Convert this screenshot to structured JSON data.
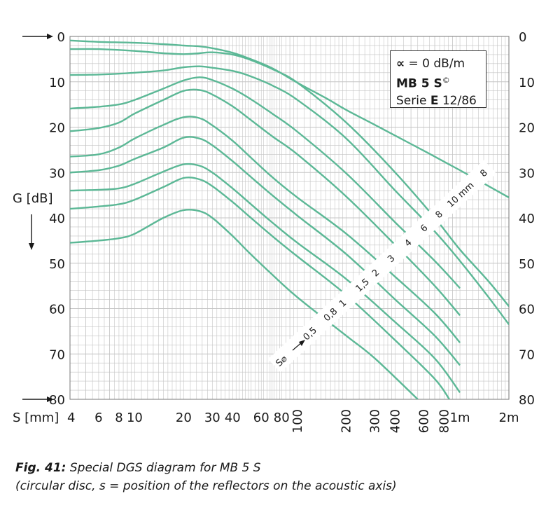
{
  "chart_data": {
    "type": "line",
    "title": "",
    "xlabel": "S [mm]",
    "ylabel": "G [dB]",
    "x_scale": "log",
    "xlim": [
      4,
      2000
    ],
    "ylim": [
      80,
      0
    ],
    "grid": true,
    "x_tick_labels": [
      {
        "value": 6,
        "label": "6"
      },
      {
        "value": 8,
        "label": "8"
      },
      {
        "value": 10,
        "label": "10"
      },
      {
        "value": 20,
        "label": "20"
      },
      {
        "value": 30,
        "label": "30"
      },
      {
        "value": 40,
        "label": "40"
      },
      {
        "value": 60,
        "label": "60"
      },
      {
        "value": 80,
        "label": "80"
      },
      {
        "value": 100,
        "label": "100"
      },
      {
        "value": 200,
        "label": "200"
      },
      {
        "value": 300,
        "label": "300"
      },
      {
        "value": 400,
        "label": "400"
      },
      {
        "value": 600,
        "label": "600"
      },
      {
        "value": 800,
        "label": "800"
      },
      {
        "value": 1000,
        "label": "1m"
      },
      {
        "value": 2000,
        "label": "2m"
      }
    ],
    "x_axis_start_label": "4",
    "y_ticks": [
      0,
      10,
      20,
      30,
      40,
      50,
      60,
      70,
      80
    ],
    "reflector_size_label": "S⌀",
    "line_color": "#5cb896",
    "series": [
      {
        "size": "∞",
        "x": [
          4,
          6,
          10,
          15,
          20,
          25,
          30,
          40,
          50,
          70,
          100,
          150,
          200,
          300,
          500,
          700,
          1000,
          1500,
          2000
        ],
        "y": [
          0.9,
          1.2,
          1.4,
          1.7,
          2.0,
          2.2,
          2.6,
          3.6,
          4.8,
          7.0,
          10.2,
          13.6,
          16.2,
          19.5,
          23.7,
          26.5,
          29.5,
          33.0,
          35.5
        ]
      },
      {
        "size": "10 mm",
        "x": [
          4,
          6,
          10,
          15,
          20,
          25,
          30,
          40,
          50,
          70,
          100,
          200,
          400,
          700,
          1000,
          1500,
          2000
        ],
        "y": [
          2.8,
          2.8,
          3.2,
          3.7,
          3.9,
          3.7,
          3.5,
          4.0,
          5.0,
          7.2,
          10.2,
          19.0,
          30.0,
          40.0,
          47.0,
          54.0,
          59.5
        ]
      },
      {
        "size": "8",
        "x": [
          4,
          6,
          10,
          15,
          20,
          25,
          30,
          40,
          50,
          70,
          100,
          200,
          400,
          700,
          1000,
          1500,
          2000
        ],
        "y": [
          8.5,
          8.4,
          8.0,
          7.5,
          6.8,
          6.6,
          6.9,
          7.6,
          8.6,
          10.8,
          14.0,
          22.5,
          34.0,
          43.0,
          49.5,
          57.5,
          63.5
        ]
      },
      {
        "size": "6",
        "x": [
          4,
          6,
          8,
          10,
          15,
          20,
          25,
          30,
          40,
          50,
          70,
          100,
          200,
          400,
          700,
          1000
        ],
        "y": [
          15.9,
          15.5,
          15.0,
          14.0,
          11.5,
          9.7,
          9.0,
          9.6,
          11.5,
          13.5,
          17.0,
          21.0,
          30.2,
          41.0,
          49.5,
          55.5
        ]
      },
      {
        "size": "4",
        "x": [
          4,
          6,
          8,
          10,
          15,
          20,
          25,
          30,
          40,
          50,
          70,
          100,
          200,
          400,
          700,
          1000
        ],
        "y": [
          20.9,
          20.2,
          19.0,
          17.0,
          14.0,
          12.0,
          11.8,
          12.8,
          15.4,
          18.0,
          22.0,
          26.0,
          35.3,
          46.0,
          55.0,
          61.5
        ]
      },
      {
        "size": "3",
        "x": [
          4,
          6,
          8,
          10,
          15,
          20,
          25,
          30,
          40,
          50,
          70,
          100,
          200,
          400,
          700,
          1000
        ],
        "y": [
          26.5,
          26.0,
          24.5,
          22.5,
          19.5,
          17.8,
          18.0,
          19.6,
          23.0,
          26.2,
          31.0,
          35.5,
          43.5,
          53.0,
          61.0,
          67.5
        ]
      },
      {
        "size": "2",
        "x": [
          4,
          6,
          8,
          10,
          15,
          20,
          25,
          30,
          40,
          50,
          70,
          100,
          200,
          400,
          700,
          1000
        ],
        "y": [
          30.0,
          29.5,
          28.5,
          27.0,
          24.5,
          22.3,
          22.5,
          24.0,
          27.5,
          30.5,
          35.0,
          39.5,
          48.0,
          58.0,
          66.0,
          72.5
        ]
      },
      {
        "size": "1,5",
        "x": [
          4,
          6,
          8,
          10,
          15,
          20,
          25,
          30,
          40,
          50,
          70,
          100,
          200,
          400,
          700,
          1000
        ],
        "y": [
          34.0,
          33.8,
          33.5,
          32.5,
          29.8,
          28.2,
          28.5,
          30.0,
          33.5,
          36.5,
          41.0,
          45.5,
          53.5,
          63.0,
          71.0,
          78.5
        ]
      },
      {
        "size": "1",
        "x": [
          4,
          6,
          8,
          10,
          15,
          20,
          25,
          30,
          40,
          50,
          70,
          100,
          200,
          400,
          700,
          860
        ],
        "y": [
          38.0,
          37.5,
          37.0,
          36.0,
          33.2,
          31.2,
          31.5,
          33.0,
          36.5,
          39.5,
          44.0,
          48.5,
          57.0,
          67.0,
          75.5,
          80.0
        ]
      },
      {
        "size": "0,8",
        "x": [
          4,
          6,
          8,
          10,
          15,
          20,
          25,
          30,
          40,
          50,
          70,
          100,
          200,
          300,
          550
        ],
        "y": [
          45.5,
          45.0,
          44.5,
          43.5,
          40.0,
          38.3,
          38.5,
          40.0,
          44.0,
          47.5,
          52.5,
          57.5,
          66.0,
          71.0,
          80.0
        ]
      }
    ],
    "diagonal_labels": [
      "0,5",
      "0,8",
      "1",
      "1,5",
      "2",
      "3",
      "4",
      "6",
      "8",
      "10 mm",
      "8"
    ]
  },
  "infobox": {
    "line1_symbol": "∝",
    "line1_rest": " = 0 dB/m",
    "line2_bold": "MB 5 S",
    "line2_sup": "©",
    "line3_prefix": "Serie ",
    "line3_bold": "E",
    "line3_rest": " 12/86"
  },
  "caption": {
    "fig_label": "Fig. 41:",
    "line1": " Special DGS diagram for MB 5 S",
    "line2": "(circular disc, s = position of the reflectors on the acoustic axis)"
  }
}
